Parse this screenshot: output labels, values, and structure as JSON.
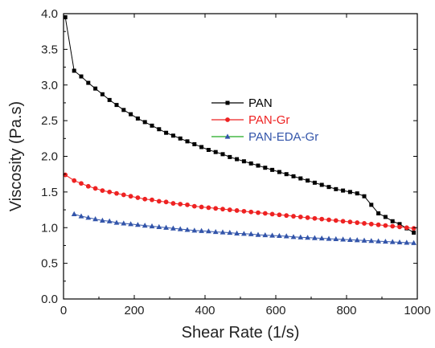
{
  "chart_data": {
    "type": "line",
    "xlabel": "Shear Rate (1/s)",
    "ylabel": "Viscosity (Pa.s)",
    "xlim": [
      0,
      1000
    ],
    "ylim": [
      0.0,
      4.0
    ],
    "xticks": [
      "0",
      "200",
      "400",
      "600",
      "800",
      "1000"
    ],
    "yticks": [
      "0.0",
      "0.5",
      "1.0",
      "1.5",
      "2.0",
      "2.5",
      "3.0",
      "3.5",
      "4.0"
    ],
    "grid": false,
    "legend_position": "upper-center",
    "series": [
      {
        "name": "PAN",
        "color": "#000000",
        "marker": "square",
        "x": [
          5,
          30,
          50,
          70,
          90,
          110,
          130,
          150,
          170,
          190,
          210,
          230,
          250,
          270,
          290,
          310,
          330,
          350,
          370,
          390,
          410,
          430,
          450,
          470,
          490,
          510,
          530,
          550,
          570,
          590,
          610,
          630,
          650,
          670,
          690,
          710,
          730,
          750,
          770,
          790,
          810,
          830,
          850,
          870,
          890,
          910,
          930,
          950,
          970,
          990
        ],
        "y": [
          3.95,
          3.2,
          3.12,
          3.03,
          2.95,
          2.87,
          2.79,
          2.72,
          2.65,
          2.59,
          2.53,
          2.48,
          2.43,
          2.38,
          2.33,
          2.29,
          2.25,
          2.21,
          2.17,
          2.13,
          2.09,
          2.06,
          2.03,
          1.99,
          1.96,
          1.93,
          1.9,
          1.87,
          1.84,
          1.81,
          1.78,
          1.75,
          1.72,
          1.69,
          1.66,
          1.63,
          1.6,
          1.57,
          1.54,
          1.52,
          1.5,
          1.48,
          1.44,
          1.32,
          1.2,
          1.15,
          1.09,
          1.05,
          0.99,
          0.93
        ]
      },
      {
        "name": "PAN-Gr",
        "color": "#ee2222",
        "marker": "circle",
        "x": [
          5,
          30,
          50,
          70,
          90,
          110,
          130,
          150,
          170,
          190,
          210,
          230,
          250,
          270,
          290,
          310,
          330,
          350,
          370,
          390,
          410,
          430,
          450,
          470,
          490,
          510,
          530,
          550,
          570,
          590,
          610,
          630,
          650,
          670,
          690,
          710,
          730,
          750,
          770,
          790,
          810,
          830,
          850,
          870,
          890,
          910,
          930,
          950,
          970,
          990
        ],
        "y": [
          1.74,
          1.66,
          1.62,
          1.58,
          1.55,
          1.52,
          1.5,
          1.48,
          1.46,
          1.44,
          1.42,
          1.4,
          1.39,
          1.37,
          1.36,
          1.34,
          1.33,
          1.32,
          1.3,
          1.29,
          1.28,
          1.27,
          1.26,
          1.25,
          1.24,
          1.23,
          1.22,
          1.21,
          1.2,
          1.19,
          1.18,
          1.17,
          1.16,
          1.15,
          1.14,
          1.13,
          1.12,
          1.11,
          1.1,
          1.09,
          1.08,
          1.07,
          1.06,
          1.05,
          1.04,
          1.03,
          1.02,
          1.01,
          1.0,
          0.99
        ]
      },
      {
        "name": "PAN-EDA-Gr",
        "color": "#3355aa",
        "line_color": "#22aa22",
        "marker": "triangle",
        "x": [
          30,
          50,
          70,
          90,
          110,
          130,
          150,
          170,
          190,
          210,
          230,
          250,
          270,
          290,
          310,
          330,
          350,
          370,
          390,
          410,
          430,
          450,
          470,
          490,
          510,
          530,
          550,
          570,
          590,
          610,
          630,
          650,
          670,
          690,
          710,
          730,
          750,
          770,
          790,
          810,
          830,
          850,
          870,
          890,
          910,
          930,
          950,
          970,
          990
        ],
        "y": [
          1.19,
          1.16,
          1.14,
          1.12,
          1.1,
          1.09,
          1.07,
          1.06,
          1.05,
          1.04,
          1.03,
          1.02,
          1.01,
          1.0,
          0.99,
          0.98,
          0.97,
          0.96,
          0.955,
          0.95,
          0.94,
          0.935,
          0.93,
          0.92,
          0.915,
          0.91,
          0.9,
          0.895,
          0.89,
          0.885,
          0.88,
          0.87,
          0.865,
          0.86,
          0.855,
          0.85,
          0.845,
          0.84,
          0.835,
          0.83,
          0.825,
          0.82,
          0.815,
          0.81,
          0.805,
          0.8,
          0.795,
          0.79,
          0.785
        ]
      }
    ]
  }
}
